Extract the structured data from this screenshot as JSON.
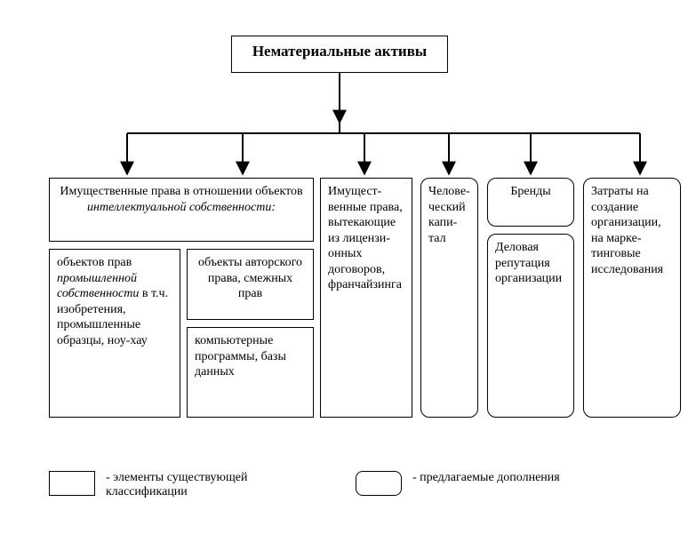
{
  "diagram": {
    "type": "tree",
    "colors": {
      "background": "#ffffff",
      "line": "#000000",
      "text": "#000000",
      "box_bg": "#ffffff"
    },
    "root": {
      "title": "Нематериальные активы"
    },
    "group1": {
      "header_html": "Имущественные права в отноше­нии объектов <i>интеллектуальной собственности:</i>",
      "sub_left_html": "объектов прав <i>промышленной собственности</i> в т.ч. изобрете­ния, промыш­ленные образцы, ноу-хау",
      "sub_right_top": "объекты авторского права, смежных прав",
      "sub_right_bottom": "компьютерные программы, базы данных"
    },
    "col2": "Имущест­венные права, вытекающие из лицензи­онных договоров, франчай­зинга",
    "col3": "Чело­ве­чес­кий капи­тал",
    "col4_top": "Бренды",
    "col4_bottom": "Деловая репута­ция органи­зации",
    "col5": "Затраты на создание организа­ции, на марке­тинговые исследо­вания",
    "legend": {
      "existing": "- элементы существующей классификации",
      "proposed": "- предлагаемые дополне­ния"
    }
  }
}
